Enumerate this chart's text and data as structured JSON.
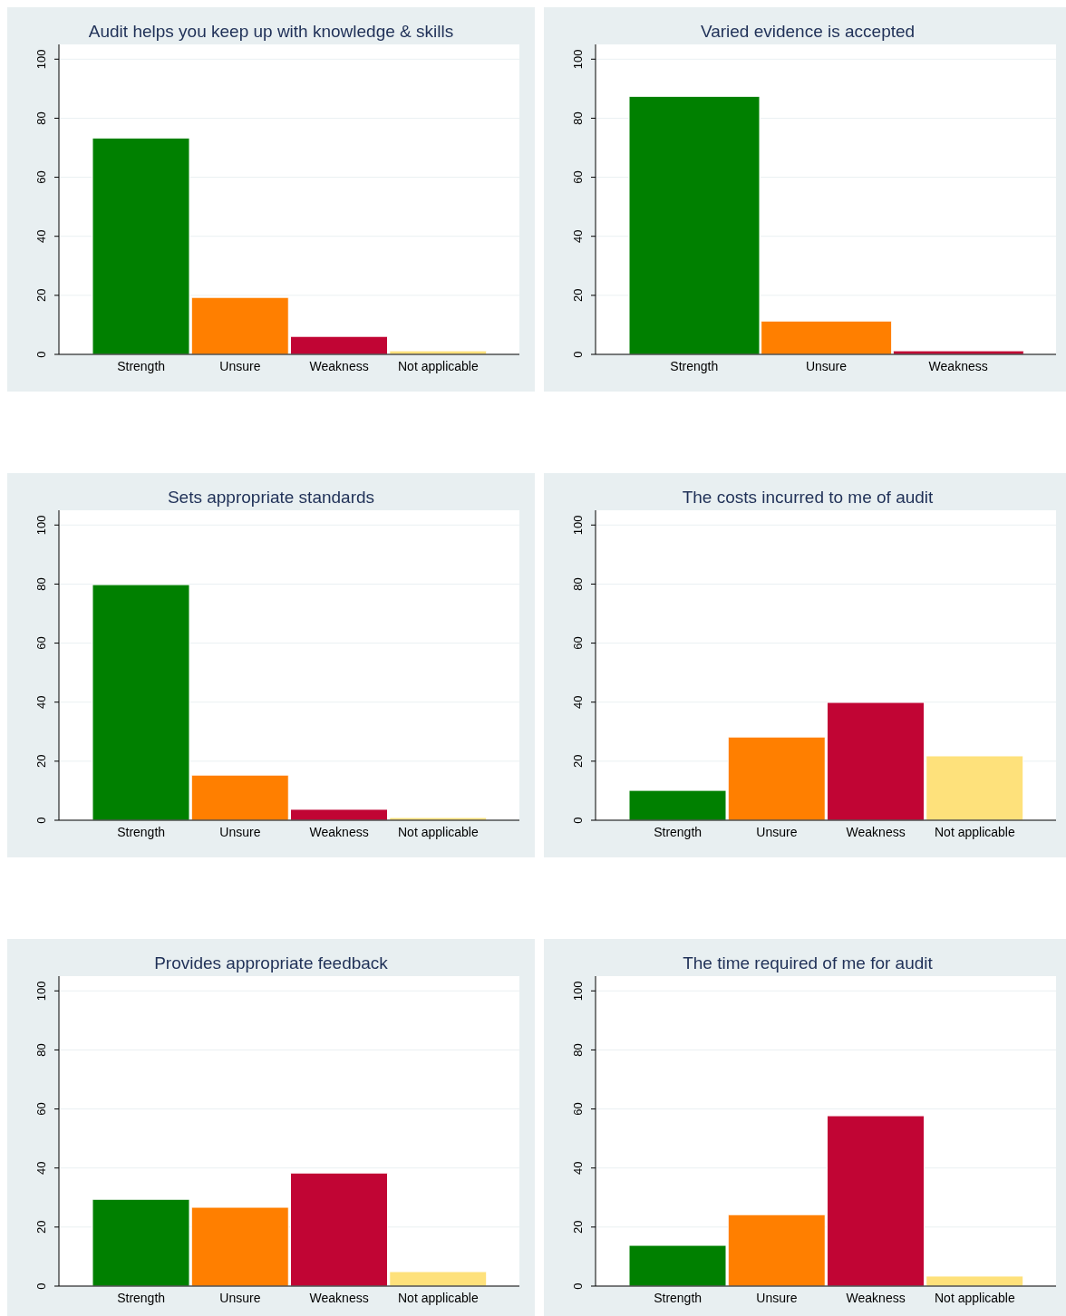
{
  "chart_data": [
    {
      "type": "bar",
      "title": "Audit helps you keep up with knowledge & skills",
      "categories": [
        "Strength",
        "Unsure",
        "Weakness",
        "Not applicable"
      ],
      "values": [
        73.3,
        19.3,
        6.1,
        1.2
      ],
      "colors": [
        "#008000",
        "#ff7f00",
        "#c10534",
        "#fee17b"
      ],
      "ylim": [
        0,
        105
      ],
      "yticks": [
        0,
        20,
        40,
        60,
        80,
        100
      ],
      "grid": "y"
    },
    {
      "type": "bar",
      "title": "Varied evidence is accepted",
      "categories": [
        "Strength",
        "Unsure",
        "Weakness"
      ],
      "values": [
        87.4,
        11.3,
        1.2
      ],
      "colors": [
        "#008000",
        "#ff7f00",
        "#c10534"
      ],
      "ylim": [
        0,
        105
      ],
      "yticks": [
        0,
        20,
        40,
        60,
        80,
        100
      ],
      "grid": "y"
    },
    {
      "type": "bar",
      "title": "Sets appropriate standards",
      "categories": [
        "Strength",
        "Unsure",
        "Weakness",
        "Not applicable"
      ],
      "values": [
        79.8,
        15.3,
        3.7,
        0.9
      ],
      "colors": [
        "#008000",
        "#ff7f00",
        "#c10534",
        "#fee17b"
      ],
      "ylim": [
        0,
        105
      ],
      "yticks": [
        0,
        20,
        40,
        60,
        80,
        100
      ],
      "grid": "y"
    },
    {
      "type": "bar",
      "title": "The costs incurred to me of audit",
      "categories": [
        "Strength",
        "Unsure",
        "Weakness",
        "Not applicable"
      ],
      "values": [
        10.1,
        28.2,
        39.9,
        21.8
      ],
      "colors": [
        "#008000",
        "#ff7f00",
        "#c10534",
        "#fee17b"
      ],
      "ylim": [
        0,
        105
      ],
      "yticks": [
        0,
        20,
        40,
        60,
        80,
        100
      ],
      "grid": "y"
    },
    {
      "type": "bar",
      "title": "Provides appropriate feedback",
      "categories": [
        "Strength",
        "Unsure",
        "Weakness",
        "Not applicable"
      ],
      "values": [
        29.4,
        26.7,
        38.3,
        4.9
      ],
      "colors": [
        "#008000",
        "#ff7f00",
        "#c10534",
        "#fee17b"
      ],
      "ylim": [
        0,
        105
      ],
      "yticks": [
        0,
        20,
        40,
        60,
        80,
        100
      ],
      "grid": "y"
    },
    {
      "type": "bar",
      "title": "The time required of me for audit",
      "categories": [
        "Strength",
        "Unsure",
        "Weakness",
        "Not applicable"
      ],
      "values": [
        13.8,
        24.2,
        57.7,
        3.4
      ],
      "colors": [
        "#008000",
        "#ff7f00",
        "#c10534",
        "#fee17b"
      ],
      "ylim": [
        0,
        105
      ],
      "yticks": [
        0,
        20,
        40,
        60,
        80,
        100
      ],
      "grid": "y"
    }
  ]
}
